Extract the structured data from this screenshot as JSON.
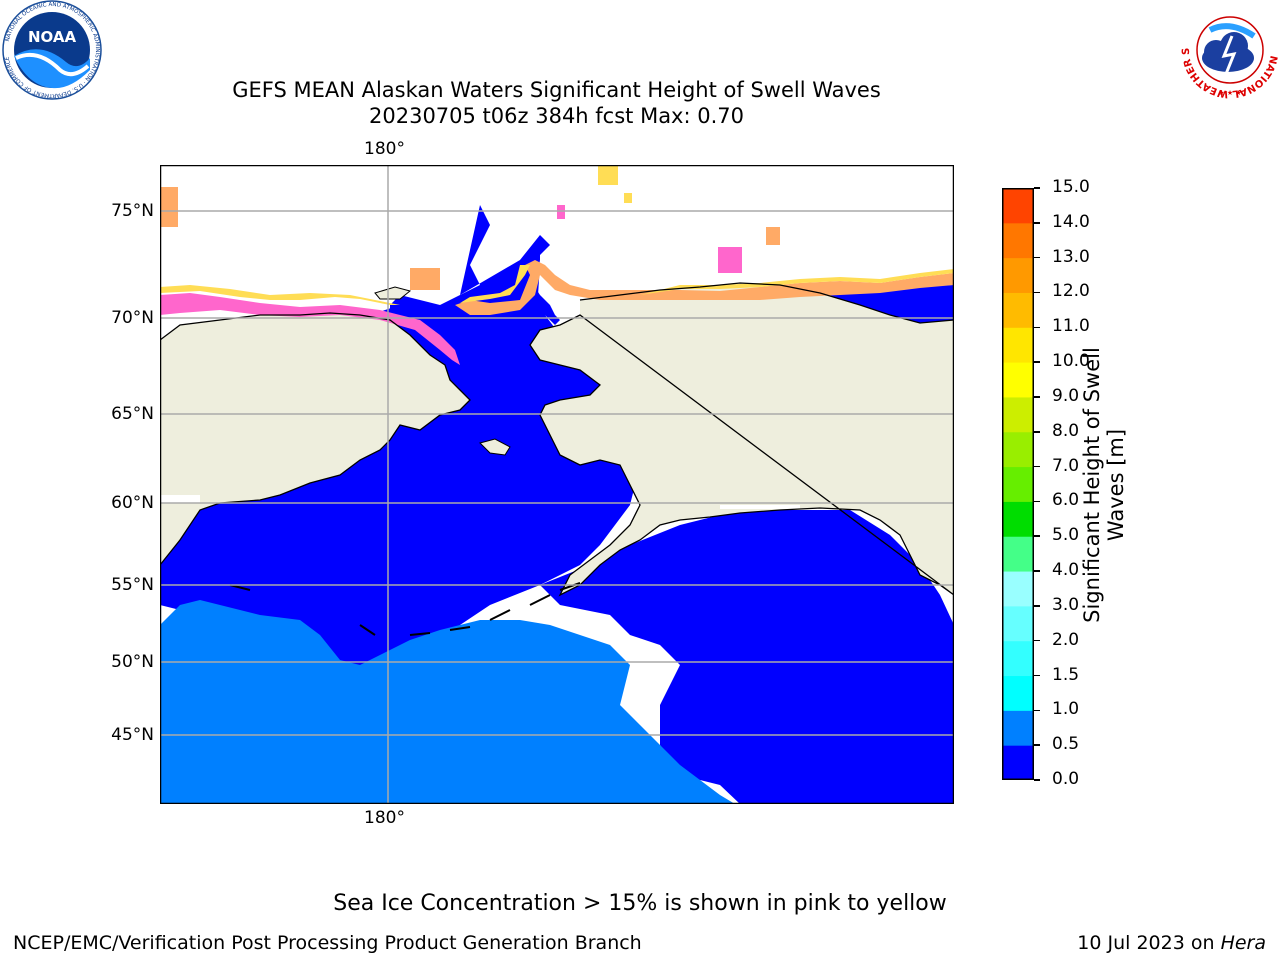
{
  "title": {
    "line1": "GEFS MEAN Alaskan Waters Significant Height of Swell Waves",
    "line2": "20230705 t06z 384h fcst   Max: 0.70"
  },
  "map": {
    "lat_labels": [
      "75°N",
      "70°N",
      "65°N",
      "60°N",
      "55°N",
      "50°N",
      "45°N"
    ],
    "lon_label_top": "180°",
    "lon_label_bottom": "180°",
    "land_color": "#eeeedd",
    "water_low_color": "#0000ff",
    "water_mid_color": "#0080ff",
    "ice_colors": [
      "#ff66cc",
      "#ffaa66",
      "#ffdd55"
    ]
  },
  "colorbar": {
    "label": "Significant Height of Swell Waves [m]",
    "ticks": [
      "0.0",
      "0.5",
      "1.0",
      "1.5",
      "2.0",
      "3.0",
      "4.0",
      "5.0",
      "6.0",
      "7.0",
      "8.0",
      "9.0",
      "10.0",
      "11.0",
      "12.0",
      "13.0",
      "14.0",
      "15.0"
    ],
    "colors": [
      "#0000ff",
      "#0080ff",
      "#00ffff",
      "#33ffff",
      "#66ffff",
      "#99ffff",
      "#44ff88",
      "#00dd00",
      "#66ee00",
      "#99ee00",
      "#ccee00",
      "#ffff00",
      "#ffe600",
      "#ffbb00",
      "#ff9900",
      "#ff7700",
      "#ff4400",
      "#ff0000"
    ]
  },
  "caption": "Sea Ice Concentration > 15% is shown in pink to yellow",
  "footer": {
    "left": "NCEP/EMC/Verification Post Processing Product Generation Branch",
    "right_date": "10 Jul 2023 on ",
    "right_host": "Hera"
  },
  "logos": {
    "noaa_text": "NOAA",
    "noaa_ring_text": "NATIONAL OCEANIC AND ATMOSPHERIC ADMINISTRATION · U.S. DEPARTMENT OF COMMERCE",
    "nws_ring_text": "NATIONAL WEATHER SERVICE"
  }
}
